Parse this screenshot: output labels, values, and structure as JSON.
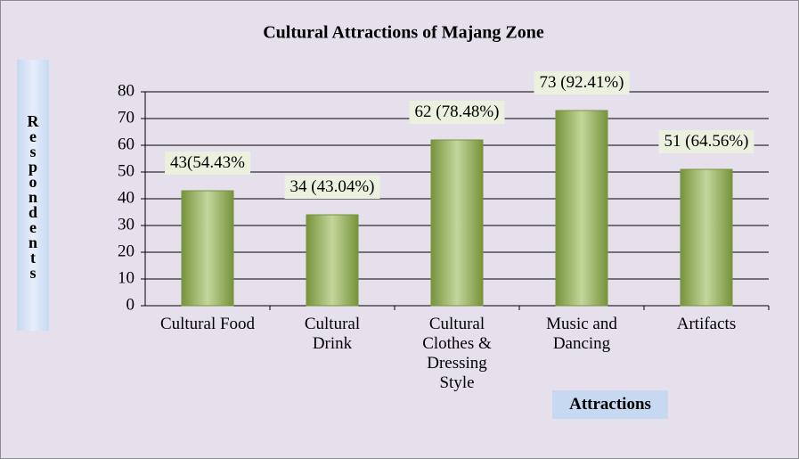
{
  "chart_data": {
    "type": "bar",
    "title": "Cultural Attractions of Majang Zone",
    "x_label": "Attractions",
    "y_label": "Respondents",
    "categories": [
      "Cultural Food",
      "Cultural\nDrink",
      "Cultural\nClothes &\nDressing\nStyle",
      "Music and\nDancing",
      "Artifacts"
    ],
    "values": [
      43,
      34,
      62,
      73,
      51
    ],
    "value_labels": [
      "43(54.43%",
      "34 (43.04%)",
      "62 (78.48%)",
      "73 (92.41%)",
      "51 (64.56%)"
    ],
    "color": "#9bbb59",
    "ylim": [
      0,
      80
    ],
    "yticks": [
      0,
      10,
      20,
      30,
      40,
      50,
      60,
      70,
      80
    ],
    "grid": true
  }
}
